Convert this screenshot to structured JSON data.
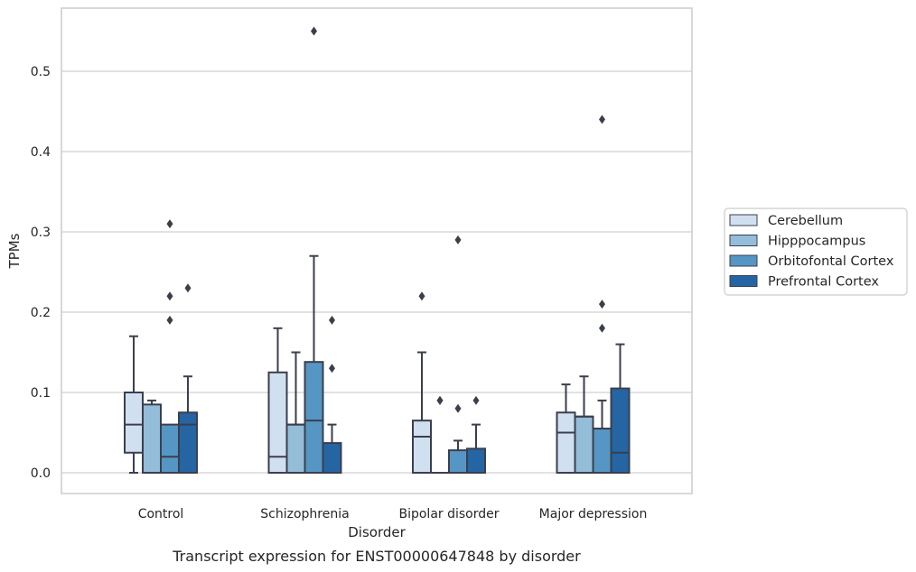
{
  "chart_data": {
    "type": "box",
    "xlabel": "Disorder",
    "ylabel": "TPMs",
    "caption": "Transcript expression for ENST00000647848 by disorder",
    "ylim": [
      -0.026,
      0.58
    ],
    "yticks": [
      0.0,
      0.1,
      0.2,
      0.3,
      0.4,
      0.5
    ],
    "ytick_labels": [
      "0.0",
      "0.1",
      "0.2",
      "0.3",
      "0.4",
      "0.5"
    ],
    "grid": "horizontal",
    "legend_position": "right",
    "categories": [
      "Control",
      "Schizophrenia",
      "Bipolar disorder",
      "Major depression"
    ],
    "colors": {
      "Cerebellum": "#d1e0f0",
      "Hipppocampus": "#94bdd9",
      "Orbitofontal Cortex": "#5596c5",
      "Prefrontal Cortex": "#2565a4",
      "line": "#3b3f4c",
      "grid": "#d0d0d0",
      "frame": "#cccccc"
    },
    "series": [
      {
        "name": "Cerebellum",
        "boxes": [
          {
            "q1": 0.025,
            "median": 0.06,
            "q3": 0.1,
            "whisker_low": 0.0,
            "whisker_high": 0.17,
            "outliers": []
          },
          {
            "q1": 0.0,
            "median": 0.02,
            "q3": 0.125,
            "whisker_low": 0.0,
            "whisker_high": 0.18,
            "outliers": []
          },
          {
            "q1": 0.0,
            "median": 0.045,
            "q3": 0.065,
            "whisker_low": 0.0,
            "whisker_high": 0.15,
            "outliers": [
              0.22
            ]
          },
          {
            "q1": 0.0,
            "median": 0.05,
            "q3": 0.075,
            "whisker_low": 0.0,
            "whisker_high": 0.11,
            "outliers": []
          }
        ]
      },
      {
        "name": "Hipppocampus",
        "boxes": [
          {
            "q1": 0.0,
            "median": 0.0,
            "q3": 0.085,
            "whisker_low": 0.0,
            "whisker_high": 0.09,
            "outliers": []
          },
          {
            "q1": 0.0,
            "median": 0.06,
            "q3": 0.06,
            "whisker_low": 0.0,
            "whisker_high": 0.15,
            "outliers": []
          },
          {
            "q1": 0.0,
            "median": 0.0,
            "q3": 0.0,
            "whisker_low": 0.0,
            "whisker_high": 0.0,
            "outliers": [
              0.09,
              0.09
            ]
          },
          {
            "q1": 0.0,
            "median": 0.07,
            "q3": 0.07,
            "whisker_low": 0.0,
            "whisker_high": 0.12,
            "outliers": []
          }
        ]
      },
      {
        "name": "Orbitofontal Cortex",
        "boxes": [
          {
            "q1": 0.0,
            "median": 0.02,
            "q3": 0.06,
            "whisker_low": 0.0,
            "whisker_high": 0.06,
            "outliers": [
              0.19,
              0.22,
              0.31
            ]
          },
          {
            "q1": 0.0,
            "median": 0.065,
            "q3": 0.138,
            "whisker_low": 0.0,
            "whisker_high": 0.27,
            "outliers": [
              0.55
            ]
          },
          {
            "q1": 0.0,
            "median": 0.0,
            "q3": 0.028,
            "whisker_low": 0.0,
            "whisker_high": 0.04,
            "outliers": [
              0.08,
              0.29
            ]
          },
          {
            "q1": 0.0,
            "median": 0.055,
            "q3": 0.055,
            "whisker_low": 0.0,
            "whisker_high": 0.09,
            "outliers": [
              0.18,
              0.21,
              0.44
            ]
          }
        ]
      },
      {
        "name": "Prefrontal Cortex",
        "boxes": [
          {
            "q1": 0.0,
            "median": 0.06,
            "q3": 0.075,
            "whisker_low": 0.0,
            "whisker_high": 0.12,
            "outliers": [
              0.23
            ]
          },
          {
            "q1": 0.0,
            "median": 0.0,
            "q3": 0.037,
            "whisker_low": 0.0,
            "whisker_high": 0.06,
            "outliers": [
              0.13,
              0.19
            ]
          },
          {
            "q1": 0.0,
            "median": 0.0,
            "q3": 0.03,
            "whisker_low": 0.0,
            "whisker_high": 0.06,
            "outliers": [
              0.09
            ]
          },
          {
            "q1": 0.0,
            "median": 0.025,
            "q3": 0.105,
            "whisker_low": 0.0,
            "whisker_high": 0.16,
            "outliers": []
          }
        ]
      }
    ]
  }
}
